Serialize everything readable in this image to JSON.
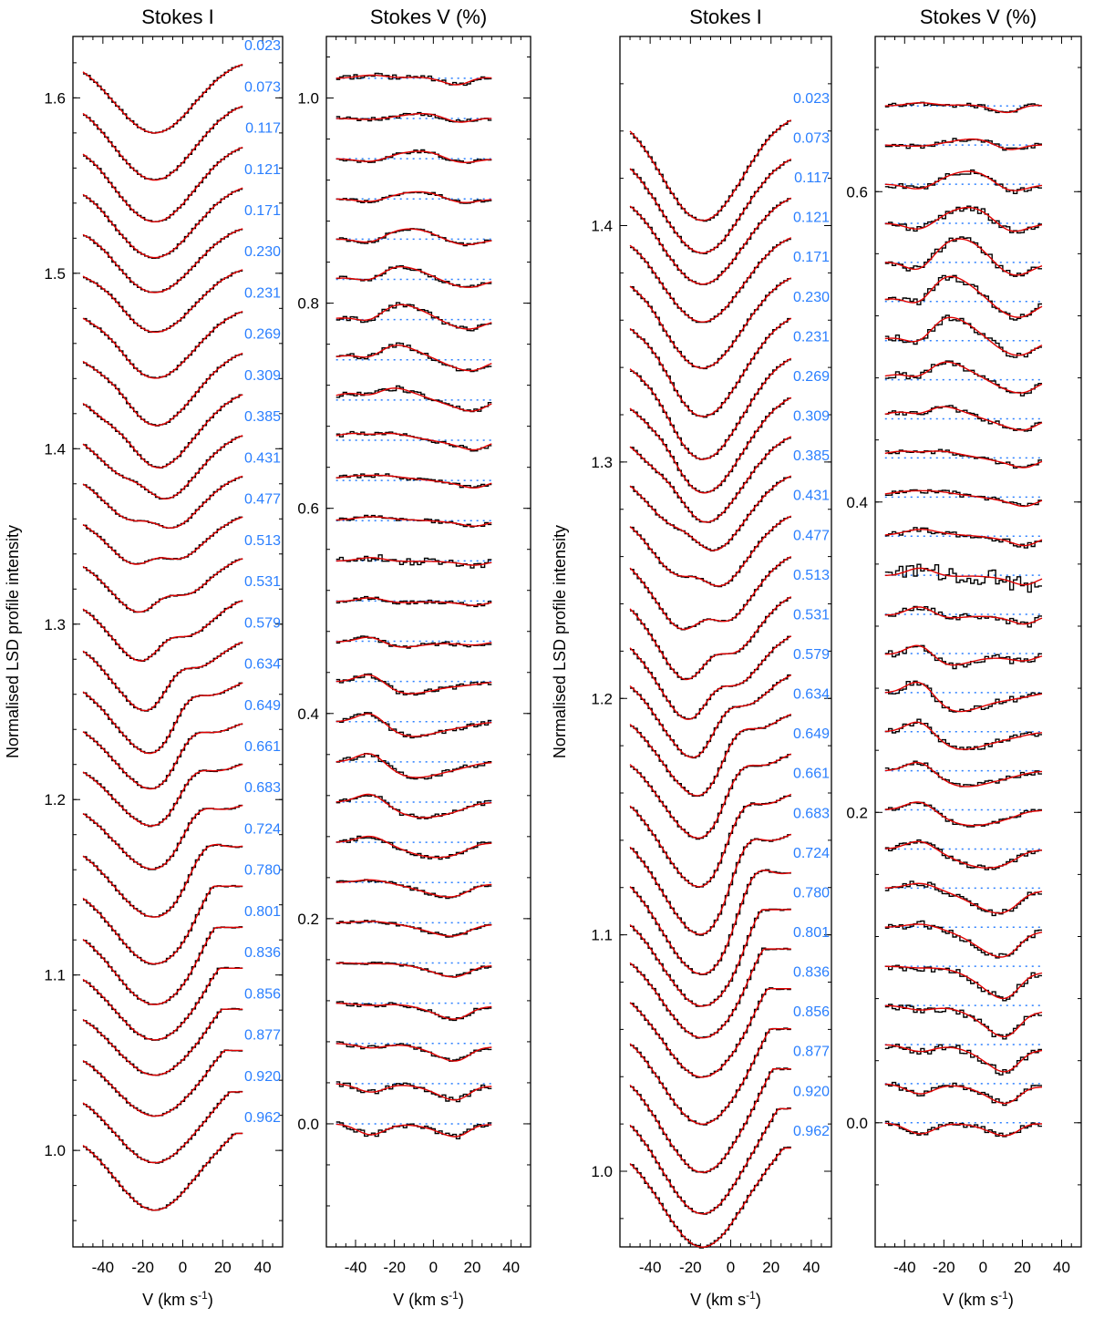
{
  "figure": {
    "colors": {
      "observed": "#000000",
      "model": "#e00000",
      "phase_text": "#2a7fff",
      "zero_line": "#2a7fff"
    },
    "xlabel_text": "V (km s",
    "xlabel_sup": "-1",
    "xlabel_close": ")",
    "ylabel": "Normalised LSD profile intensity",
    "phases": [
      "0.023",
      "0.073",
      "0.117",
      "0.121",
      "0.171",
      "0.230",
      "0.231",
      "0.269",
      "0.309",
      "0.385",
      "0.431",
      "0.477",
      "0.513",
      "0.531",
      "0.579",
      "0.634",
      "0.649",
      "0.661",
      "0.683",
      "0.724",
      "0.780",
      "0.801",
      "0.836",
      "0.856",
      "0.877",
      "0.920",
      "0.962"
    ]
  },
  "chart_data": [
    {
      "type": "line",
      "title": "Stokes I",
      "xlabel": "V (km s-1)",
      "ylabel": "Normalised LSD profile intensity",
      "xlim": [
        -55,
        50
      ],
      "ylim": [
        0.945,
        1.635
      ],
      "xticks": [
        -40,
        -20,
        0,
        20,
        40
      ],
      "yticks": [
        1.0,
        1.1,
        1.2,
        1.3,
        1.4,
        1.5,
        1.6
      ],
      "ytick_labels": [
        "1.0",
        "1.1",
        "1.2",
        "1.3",
        "1.4",
        "1.5",
        "1.6"
      ],
      "profile_x_range": [
        -50,
        30
      ],
      "profile_offset_step": 0.0235,
      "series": [
        {
          "name": "observed",
          "style": "histogram"
        },
        {
          "name": "model",
          "style": "line"
        }
      ]
    },
    {
      "type": "line",
      "title": "Stokes V (%)",
      "xlabel": "V (km s-1)",
      "xlim": [
        -55,
        50
      ],
      "ylim": [
        -0.12,
        1.06
      ],
      "xticks": [
        -40,
        -20,
        0,
        20,
        40
      ],
      "yticks": [
        0.0,
        0.2,
        0.4,
        0.6,
        0.8,
        1.0
      ],
      "ytick_labels": [
        "0.0",
        "0.2",
        "0.4",
        "0.6",
        "0.8",
        "1.0"
      ],
      "profile_x_range": [
        -50,
        30
      ],
      "profile_offset_step": 0.0392,
      "series": [
        {
          "name": "observed",
          "style": "histogram"
        },
        {
          "name": "model",
          "style": "line"
        }
      ]
    },
    {
      "type": "line",
      "title": "Stokes I",
      "xlabel": "V (km s-1)",
      "ylabel": "Normalised LSD profile intensity",
      "xlim": [
        -55,
        50
      ],
      "ylim": [
        0.968,
        1.48
      ],
      "xticks": [
        -40,
        -20,
        0,
        20,
        40
      ],
      "yticks": [
        1.0,
        1.1,
        1.2,
        1.3,
        1.4
      ],
      "ytick_labels": [
        "1.0",
        "1.1",
        "1.2",
        "1.3",
        "1.4"
      ],
      "profile_x_range": [
        -50,
        30
      ],
      "profile_offset_step": 0.0168,
      "series": [
        {
          "name": "observed",
          "style": "histogram"
        },
        {
          "name": "model",
          "style": "line"
        }
      ]
    },
    {
      "type": "line",
      "title": "Stokes V (%)",
      "xlabel": "V (km s-1)",
      "xlim": [
        -55,
        50
      ],
      "ylim": [
        -0.08,
        0.7
      ],
      "xticks": [
        -40,
        -20,
        0,
        20,
        40
      ],
      "yticks": [
        0.0,
        0.2,
        0.4,
        0.6
      ],
      "ytick_labels": [
        "0.0",
        "0.2",
        "0.4",
        "0.6"
      ],
      "profile_x_range": [
        -50,
        30
      ],
      "profile_offset_step": 0.0252,
      "series": [
        {
          "name": "observed",
          "style": "histogram"
        },
        {
          "name": "model",
          "style": "line"
        }
      ]
    }
  ]
}
